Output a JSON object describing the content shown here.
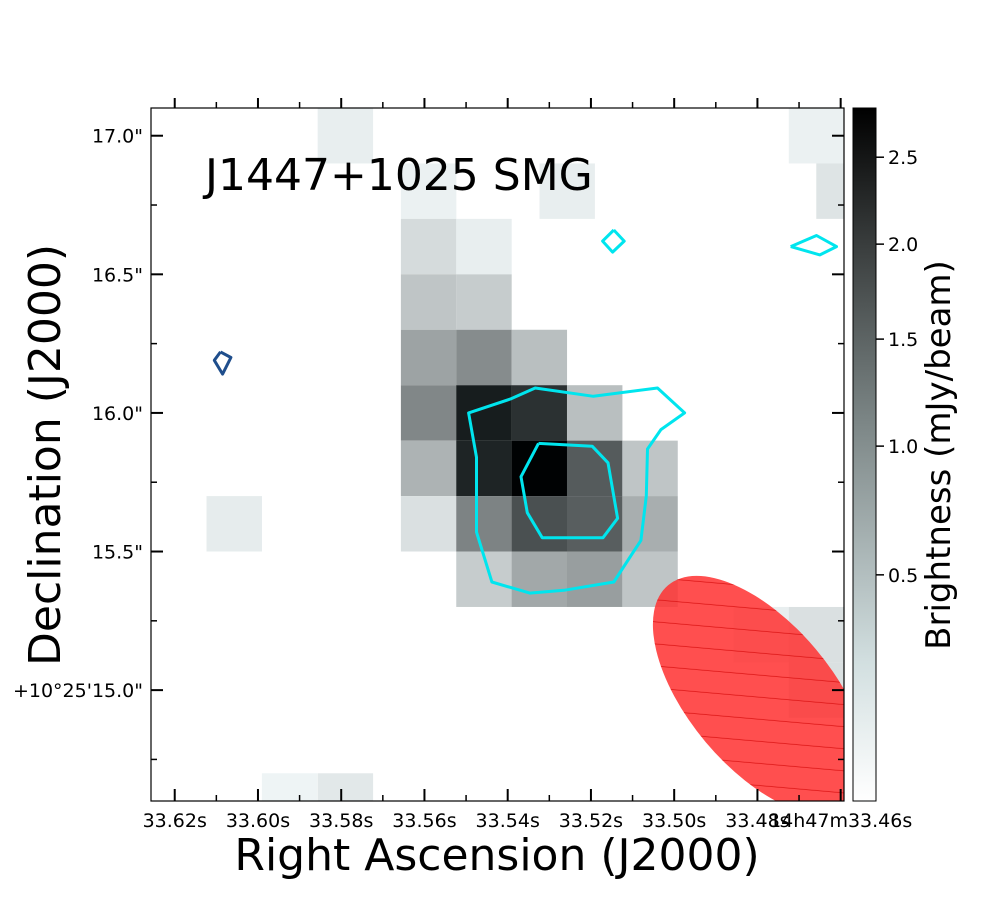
{
  "chart_data": {
    "type": "heatmap",
    "title": "J1447+1025 SMG",
    "xlabel": "Right Ascension (J2000)",
    "ylabel": "Declination (J2000)",
    "colorbar_label": "Brightness (mJy/beam)",
    "colorbar_ticks": [
      "2.5",
      "2.0",
      "1.5",
      "1.0",
      "0.5"
    ],
    "colorbar_range": [
      0.0,
      2.8
    ],
    "x_ticks": [
      "33.62s",
      "33.60s",
      "33.58s",
      "33.56s",
      "33.54s",
      "33.52s",
      "33.50s",
      "33.48s",
      "14h47m33.46s"
    ],
    "x_tick_values": [
      33.62,
      33.6,
      33.58,
      33.56,
      33.54,
      33.52,
      33.5,
      33.48,
      33.46
    ],
    "y_ticks": [
      "17.0\"",
      "16.5\"",
      "16.0\"",
      "15.5\"",
      "+10°25'15.0\""
    ],
    "y_tick_values": [
      17.0,
      16.5,
      16.0,
      15.5,
      15.0
    ],
    "x_range": [
      33.6257,
      33.4592
    ],
    "y_range": [
      14.6,
      17.1
    ],
    "pixel_size_ra_s": 0.01332,
    "pixel_size_dec_arcsec": 0.2,
    "pixels": [
      {
        "ra": 33.579,
        "dec": 17.0,
        "v": 0.05
      },
      {
        "ra": 33.4658,
        "dec": 17.0,
        "v": 0.04
      },
      {
        "ra": 33.559,
        "dec": 16.8,
        "v": 0.04
      },
      {
        "ra": 33.5257,
        "dec": 16.8,
        "v": 0.05
      },
      {
        "ra": 33.559,
        "dec": 16.6,
        "v": 0.15
      },
      {
        "ra": 33.5457,
        "dec": 16.6,
        "v": 0.05
      },
      {
        "ra": 33.559,
        "dec": 16.4,
        "v": 0.3
      },
      {
        "ra": 33.5457,
        "dec": 16.4,
        "v": 0.25
      },
      {
        "ra": 33.559,
        "dec": 16.2,
        "v": 0.6
      },
      {
        "ra": 33.5457,
        "dec": 16.2,
        "v": 0.85
      },
      {
        "ra": 33.5324,
        "dec": 16.2,
        "v": 0.35
      },
      {
        "ra": 33.559,
        "dec": 16.0,
        "v": 0.9
      },
      {
        "ra": 33.5457,
        "dec": 16.0,
        "v": 2.35
      },
      {
        "ra": 33.5324,
        "dec": 16.0,
        "v": 2.05
      },
      {
        "ra": 33.5191,
        "dec": 16.0,
        "v": 0.35
      },
      {
        "ra": 33.559,
        "dec": 15.8,
        "v": 0.45
      },
      {
        "ra": 33.5457,
        "dec": 15.8,
        "v": 2.25
      },
      {
        "ra": 33.5324,
        "dec": 15.8,
        "v": 2.8
      },
      {
        "ra": 33.5191,
        "dec": 15.8,
        "v": 1.45
      },
      {
        "ra": 33.5058,
        "dec": 15.8,
        "v": 0.3
      },
      {
        "ra": 33.6057,
        "dec": 15.6,
        "v": 0.06
      },
      {
        "ra": 33.559,
        "dec": 15.6,
        "v": 0.12
      },
      {
        "ra": 33.5457,
        "dec": 15.6,
        "v": 0.95
      },
      {
        "ra": 33.5324,
        "dec": 15.6,
        "v": 1.6
      },
      {
        "ra": 33.5191,
        "dec": 15.6,
        "v": 1.4
      },
      {
        "ra": 33.5058,
        "dec": 15.6,
        "v": 0.5
      },
      {
        "ra": 33.5457,
        "dec": 15.4,
        "v": 0.25
      },
      {
        "ra": 33.5324,
        "dec": 15.4,
        "v": 0.55
      },
      {
        "ra": 33.5191,
        "dec": 15.4,
        "v": 0.65
      },
      {
        "ra": 33.5058,
        "dec": 15.4,
        "v": 0.3
      },
      {
        "ra": 33.4791,
        "dec": 15.2,
        "v": 0.05
      },
      {
        "ra": 33.4658,
        "dec": 15.2,
        "v": 0.12
      },
      {
        "ra": 33.4658,
        "dec": 15.0,
        "v": 0.12
      },
      {
        "ra": 33.5924,
        "dec": 14.6,
        "v": 0.03
      },
      {
        "ra": 33.579,
        "dec": 14.6,
        "v": 0.08
      },
      {
        "ra": 33.4592,
        "dec": 16.8,
        "v": 0.1
      }
    ],
    "contours": [
      {
        "name": "outer-positive",
        "color": "#00e5ee",
        "points": [
          [
            33.5394,
            16.05
          ],
          [
            33.5334,
            16.09
          ],
          [
            33.5194,
            16.06
          ],
          [
            33.504,
            16.09
          ],
          [
            33.4975,
            16.0
          ],
          [
            33.5032,
            15.94
          ],
          [
            33.5064,
            15.87
          ],
          [
            33.5067,
            15.7
          ],
          [
            33.508,
            15.54
          ],
          [
            33.5145,
            15.39
          ],
          [
            33.5265,
            15.36
          ],
          [
            33.5347,
            15.35
          ],
          [
            33.5438,
            15.39
          ],
          [
            33.5475,
            15.57
          ],
          [
            33.5475,
            15.84
          ],
          [
            33.5494,
            16.0
          ],
          [
            33.5394,
            16.05
          ]
        ]
      },
      {
        "name": "inner-positive",
        "color": "#00e5ee",
        "points": [
          [
            33.5326,
            15.89
          ],
          [
            33.5197,
            15.88
          ],
          [
            33.5159,
            15.82
          ],
          [
            33.5136,
            15.62
          ],
          [
            33.5171,
            15.55
          ],
          [
            33.5317,
            15.55
          ],
          [
            33.5353,
            15.64
          ],
          [
            33.5368,
            15.77
          ],
          [
            33.5326,
            15.89
          ]
        ]
      },
      {
        "name": "small-diamond",
        "color": "#00e5ee",
        "points": [
          [
            33.5145,
            16.66
          ],
          [
            33.512,
            16.62
          ],
          [
            33.5148,
            16.58
          ],
          [
            33.5172,
            16.62
          ],
          [
            33.5145,
            16.66
          ]
        ]
      },
      {
        "name": "right-edge",
        "color": "#00e5ee",
        "points": [
          [
            33.472,
            16.6
          ],
          [
            33.4658,
            16.64
          ],
          [
            33.461,
            16.6
          ],
          [
            33.465,
            16.57
          ],
          [
            33.472,
            16.6
          ]
        ]
      },
      {
        "name": "negative",
        "color": "#1f4e8c",
        "points": [
          [
            33.609,
            16.22
          ],
          [
            33.6065,
            16.2
          ],
          [
            33.6085,
            16.14
          ],
          [
            33.6105,
            16.19
          ],
          [
            33.609,
            16.22
          ]
        ]
      }
    ],
    "beam": {
      "center_ra": 33.4792,
      "center_dec": 14.98,
      "major_arcsec": 0.52,
      "minor_arcsec": 0.26,
      "pa_deg": 40,
      "color": "#ff3030"
    }
  }
}
